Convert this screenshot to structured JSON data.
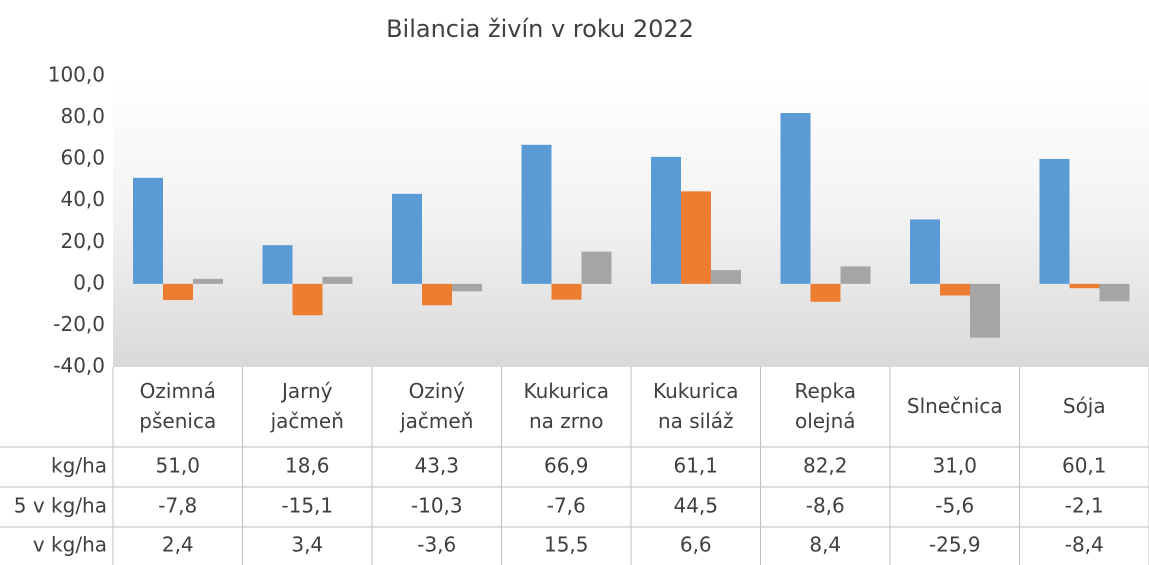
{
  "chart_data": {
    "type": "bar",
    "title": "Bilancia živín v roku 2022",
    "categories": [
      "Ozimná\npšenica",
      "Jarný\njačmeň",
      "Oziný\njačmeň",
      "Kukurica\nna zrno",
      "Kukurica\nna siláž",
      "Repka\nolejná",
      "Slnečnica",
      "Sója"
    ],
    "series": [
      {
        "name": "kg/ha",
        "color": "#5b9bd5",
        "values": [
          51.0,
          18.6,
          43.3,
          66.9,
          61.1,
          82.2,
          31.0,
          60.1
        ],
        "value_labels": [
          "51,0",
          "18,6",
          "43,3",
          "66,9",
          "61,1",
          "82,2",
          "31,0",
          "60,1"
        ]
      },
      {
        "name": "5 v kg/ha",
        "color": "#ed7d31",
        "values": [
          -7.8,
          -15.1,
          -10.3,
          -7.6,
          44.5,
          -8.6,
          -5.6,
          -2.1
        ],
        "value_labels": [
          "-7,8",
          "-15,1",
          "-10,3",
          "-7,6",
          "44,5",
          "-8,6",
          "-5,6",
          "-2,1"
        ]
      },
      {
        "name": "v kg/ha",
        "color": "#a5a5a5",
        "values": [
          2.4,
          3.4,
          -3.6,
          15.5,
          6.6,
          8.4,
          -25.9,
          -8.4
        ],
        "value_labels": [
          "2,4",
          "3,4",
          "-3,6",
          "15,5",
          "6,6",
          "8,4",
          "-25,9",
          "-8,4"
        ]
      }
    ],
    "ylim": [
      -40,
      100
    ],
    "yticks": [
      {
        "value": -40,
        "label": "-40,0"
      },
      {
        "value": -20,
        "label": "-20,0"
      },
      {
        "value": 0,
        "label": "0,0"
      },
      {
        "value": 20,
        "label": "20,0"
      },
      {
        "value": 40,
        "label": "40,0"
      },
      {
        "value": 60,
        "label": "60,0"
      },
      {
        "value": 80,
        "label": "80,0"
      },
      {
        "value": 100,
        "label": "100,0"
      }
    ],
    "grid": false
  }
}
